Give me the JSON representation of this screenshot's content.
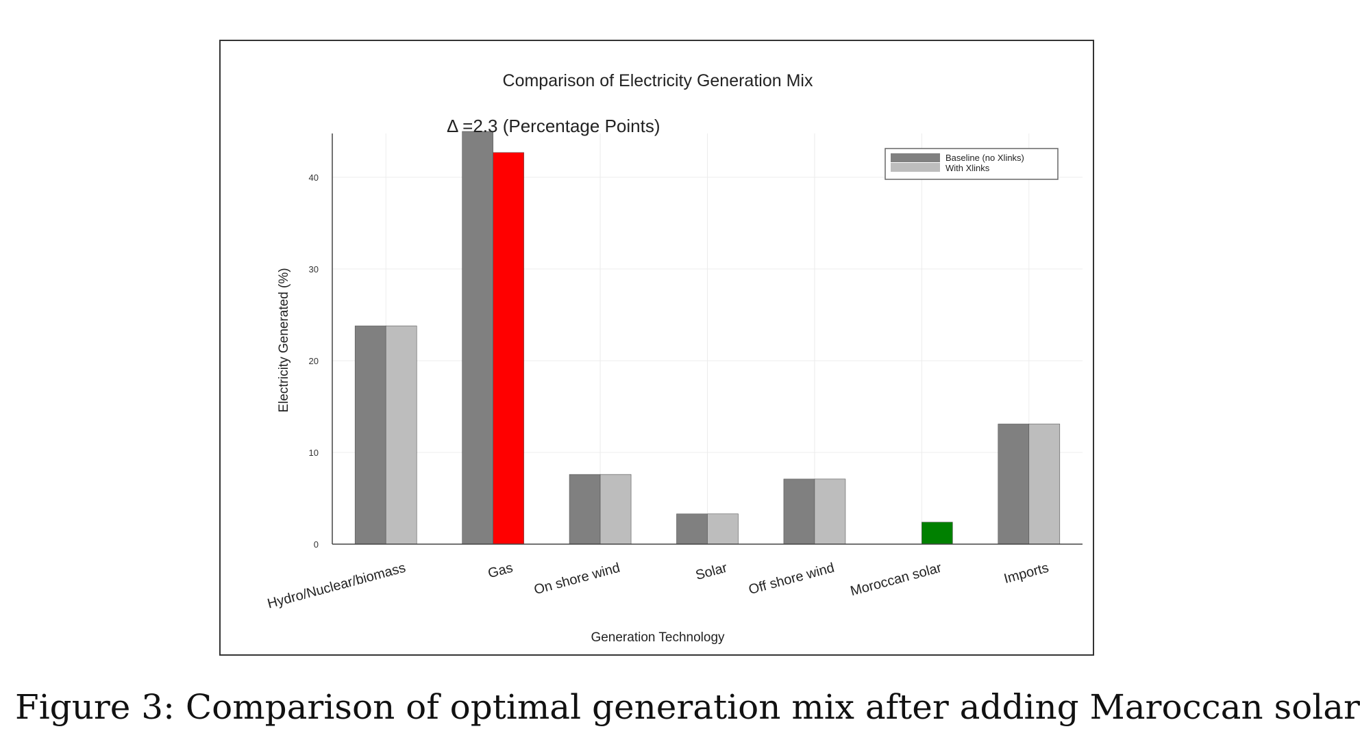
{
  "chart_data": {
    "type": "bar",
    "title": "Comparison of Electricity Generation Mix",
    "annotation": "Δ =2.3 (Percentage Points)",
    "xlabel": "Generation Technology",
    "ylabel": "Electricity Generated (%)",
    "ylim": [
      0,
      45
    ],
    "yticks": [
      0,
      10,
      20,
      30,
      40
    ],
    "grid": true,
    "legend_position": "top-right",
    "categories": [
      "Hydro/Nuclear/biomass",
      "Gas",
      "On shore wind",
      "Solar",
      "Off shore wind",
      "Moroccan solar",
      "Imports"
    ],
    "series": [
      {
        "name": "Baseline (no Xlinks)",
        "color": "#808080",
        "values": [
          23.8,
          45.0,
          7.6,
          3.3,
          7.1,
          0,
          13.1
        ]
      },
      {
        "name": "With Xlinks",
        "color": "#bdbdbd",
        "values": [
          23.8,
          42.7,
          7.6,
          3.3,
          7.1,
          2.4,
          13.1
        ]
      }
    ],
    "highlight_colors": {
      "Gas": "#ff0000",
      "Moroccan solar": "#008000"
    }
  },
  "caption": "Figure 3: Comparison of optimal generation mix after adding Maroccan solar"
}
